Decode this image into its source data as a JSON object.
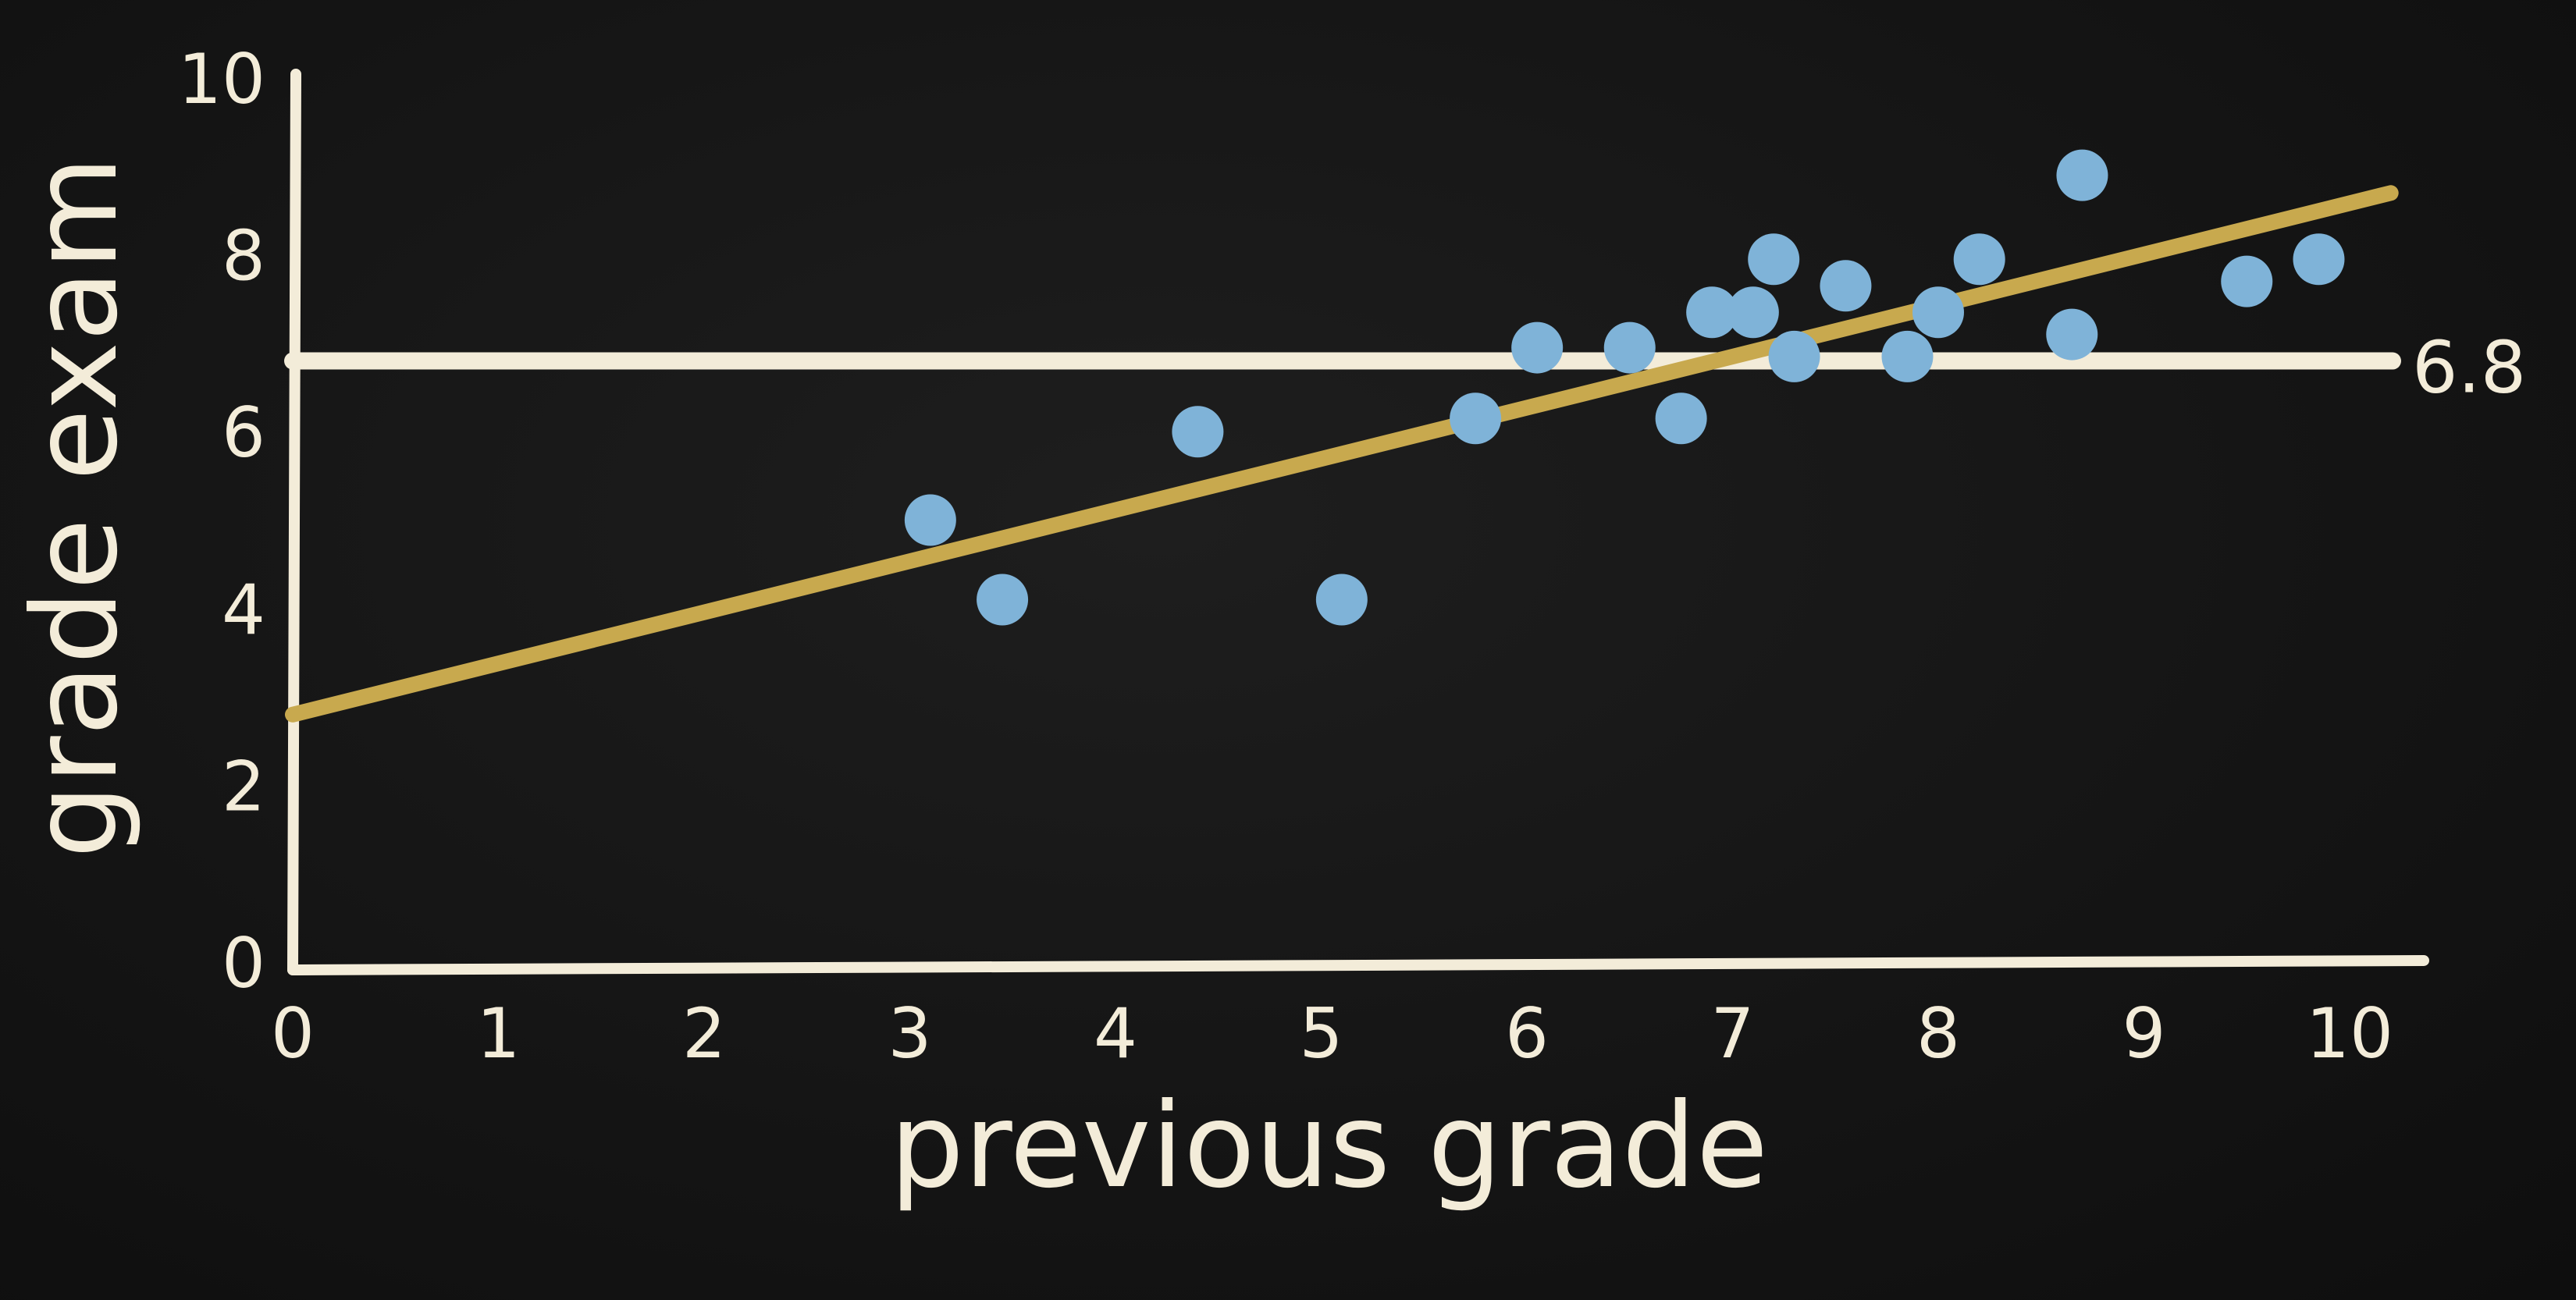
{
  "chart_data": {
    "type": "scatter",
    "title": "",
    "xlabel": "previous grade",
    "ylabel": "grade exam",
    "xlim": [
      0,
      10
    ],
    "ylim": [
      0,
      10
    ],
    "x_ticks": [
      "0",
      "1",
      "2",
      "3",
      "4",
      "5",
      "6",
      "7",
      "8",
      "9",
      "10"
    ],
    "y_ticks": [
      "0",
      "2",
      "4",
      "6",
      "8",
      "10"
    ],
    "grid": false,
    "points": [
      {
        "x": 3.1,
        "y": 5.0
      },
      {
        "x": 3.45,
        "y": 4.1
      },
      {
        "x": 4.4,
        "y": 6.0
      },
      {
        "x": 5.1,
        "y": 4.1
      },
      {
        "x": 5.75,
        "y": 6.15
      },
      {
        "x": 6.05,
        "y": 6.95
      },
      {
        "x": 6.5,
        "y": 6.95
      },
      {
        "x": 6.75,
        "y": 6.15
      },
      {
        "x": 6.9,
        "y": 7.35
      },
      {
        "x": 7.1,
        "y": 7.35
      },
      {
        "x": 7.2,
        "y": 7.95
      },
      {
        "x": 7.3,
        "y": 6.85
      },
      {
        "x": 7.55,
        "y": 7.65
      },
      {
        "x": 7.85,
        "y": 6.85
      },
      {
        "x": 8.0,
        "y": 7.35
      },
      {
        "x": 8.2,
        "y": 7.95
      },
      {
        "x": 8.65,
        "y": 7.1
      },
      {
        "x": 8.7,
        "y": 8.9
      },
      {
        "x": 9.5,
        "y": 7.7
      },
      {
        "x": 9.85,
        "y": 7.95
      }
    ],
    "regression_line": {
      "x": [
        0,
        10.2
      ],
      "y": [
        2.8,
        8.7
      ]
    },
    "mean_line": {
      "y": 6.8,
      "label": "6.8"
    },
    "colors": {
      "background": "#151515",
      "axes": "#f3ecd9",
      "points": "#7fb3d8",
      "regression": "#c8a94e",
      "mean": "#f3ecd9"
    }
  }
}
